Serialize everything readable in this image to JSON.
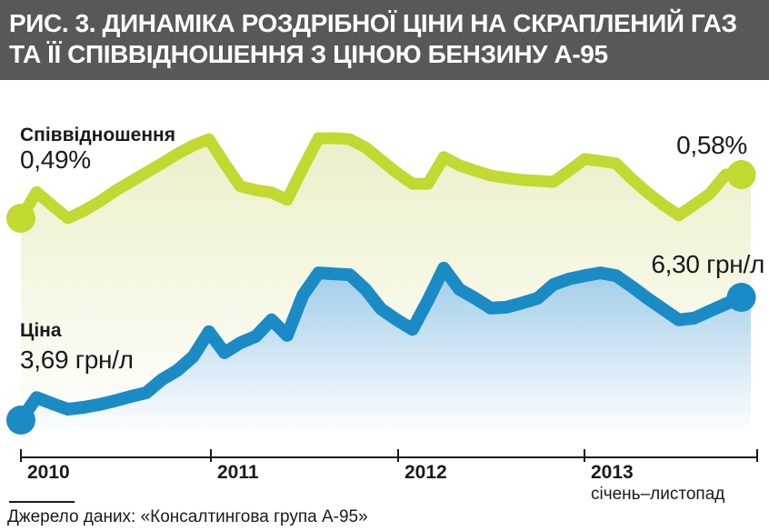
{
  "header": {
    "title_line1": "РИС. 3. ДИНАМІКА РОЗДРІБНОЇ ЦІНИ НА СКРАПЛЕНИЙ ГАЗ",
    "title_line2": "ТА ЇЇ СПІВВІДНОШЕННЯ З ЦІНОЮ БЕНЗИНУ А-95"
  },
  "source": {
    "text": "Джерело даних: «Консалтингова група А-95»"
  },
  "colors": {
    "header_bg": "#58585b",
    "ratio_line": "#c3d831",
    "ratio_fill_top": "#ecefc8",
    "price_line": "#1b8bc6",
    "price_fill_top": "#9ccbe8",
    "fill_bottom": "#ffffff",
    "axis": "#1a1a1a"
  },
  "chart_data": {
    "type": "line",
    "title": "Динаміка роздрібної ціни на скраплений газ та її співвідношення з ціною бензину А-95",
    "x_unit": "month",
    "x_range": {
      "start": "2010-01",
      "end": "2013-11"
    },
    "x_tick_labels": [
      "2010",
      "2011",
      "2012",
      "2013"
    ],
    "x_note": "січень–листопад",
    "grid": false,
    "legend_position": "inline-on-chart",
    "series": [
      {
        "name": "Співвідношення",
        "unit": "%",
        "start_label": "0,49%",
        "end_label": "0,58%",
        "values": [
          0.49,
          0.544,
          0.516,
          0.49,
          0.505,
          0.524,
          0.546,
          0.565,
          0.584,
          0.603,
          0.623,
          0.64,
          0.653,
          0.603,
          0.556,
          0.548,
          0.543,
          0.528,
          0.593,
          0.655,
          0.655,
          0.653,
          0.636,
          0.61,
          0.584,
          0.561,
          0.561,
          0.616,
          0.599,
          0.588,
          0.578,
          0.573,
          0.569,
          0.567,
          0.565,
          0.588,
          0.612,
          0.608,
          0.603,
          0.571,
          0.543,
          0.518,
          0.496,
          0.518,
          0.541,
          0.58,
          0.58
        ]
      },
      {
        "name": "Ціна",
        "unit": "грн/л",
        "start_label": "3,69 грн/л",
        "end_label": "6,30 грн/л",
        "values": [
          3.69,
          4.17,
          4.04,
          3.92,
          3.96,
          4.02,
          4.1,
          4.19,
          4.27,
          4.55,
          4.75,
          5.04,
          5.57,
          5.12,
          5.33,
          5.47,
          5.82,
          5.49,
          6.34,
          6.82,
          6.8,
          6.78,
          6.47,
          6.05,
          5.82,
          5.62,
          6.24,
          6.92,
          6.47,
          6.28,
          6.07,
          6.09,
          6.18,
          6.28,
          6.57,
          6.69,
          6.76,
          6.82,
          6.76,
          6.53,
          6.28,
          6.05,
          5.82,
          5.86,
          6.01,
          6.16,
          6.3
        ]
      }
    ]
  }
}
